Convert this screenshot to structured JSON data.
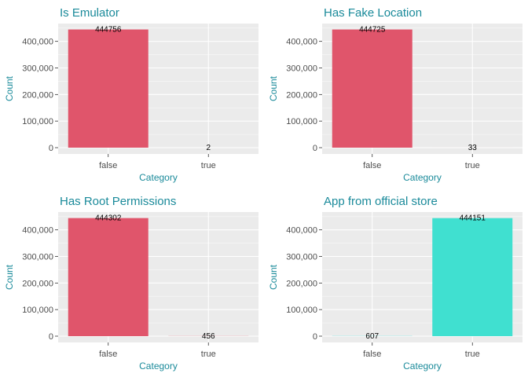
{
  "chart_data": [
    {
      "type": "bar",
      "title": "Is Emulator",
      "xlabel": "Category",
      "ylabel": "Count",
      "categories": [
        "false",
        "true"
      ],
      "values": [
        444756,
        2
      ],
      "data_labels": [
        "444756",
        "2"
      ],
      "bar_colors": [
        "#e0556b",
        "#e0556b"
      ],
      "ylim": [
        0,
        467000
      ],
      "yticks": [
        0,
        100000,
        200000,
        300000,
        400000
      ],
      "ytick_labels": [
        "0",
        "100,000",
        "200,000",
        "300,000",
        "400,000"
      ],
      "grid": true,
      "legend": "none"
    },
    {
      "type": "bar",
      "title": "Has Fake Location",
      "xlabel": "Category",
      "ylabel": "Count",
      "categories": [
        "false",
        "true"
      ],
      "values": [
        444725,
        33
      ],
      "data_labels": [
        "444725",
        "33"
      ],
      "bar_colors": [
        "#e0556b",
        "#e0556b"
      ],
      "ylim": [
        0,
        467000
      ],
      "yticks": [
        0,
        100000,
        200000,
        300000,
        400000
      ],
      "ytick_labels": [
        "0",
        "100,000",
        "200,000",
        "300,000",
        "400,000"
      ],
      "grid": true,
      "legend": "none"
    },
    {
      "type": "bar",
      "title": "Has Root Permissions",
      "xlabel": "Category",
      "ylabel": "Count",
      "categories": [
        "false",
        "true"
      ],
      "values": [
        444302,
        456
      ],
      "data_labels": [
        "444302",
        "456"
      ],
      "bar_colors": [
        "#e0556b",
        "#e0556b"
      ],
      "ylim": [
        0,
        467000
      ],
      "yticks": [
        0,
        100000,
        200000,
        300000,
        400000
      ],
      "ytick_labels": [
        "0",
        "100,000",
        "200,000",
        "300,000",
        "400,000"
      ],
      "grid": true,
      "legend": "none"
    },
    {
      "type": "bar",
      "title": "App from official store",
      "xlabel": "Category",
      "ylabel": "Count",
      "categories": [
        "false",
        "true"
      ],
      "values": [
        607,
        444151
      ],
      "data_labels": [
        "607",
        "444151"
      ],
      "bar_colors": [
        "#40e0d0",
        "#40e0d0"
      ],
      "ylim": [
        0,
        467000
      ],
      "yticks": [
        0,
        100000,
        200000,
        300000,
        400000
      ],
      "ytick_labels": [
        "0",
        "100,000",
        "200,000",
        "300,000",
        "400,000"
      ],
      "grid": true,
      "legend": "none"
    }
  ]
}
